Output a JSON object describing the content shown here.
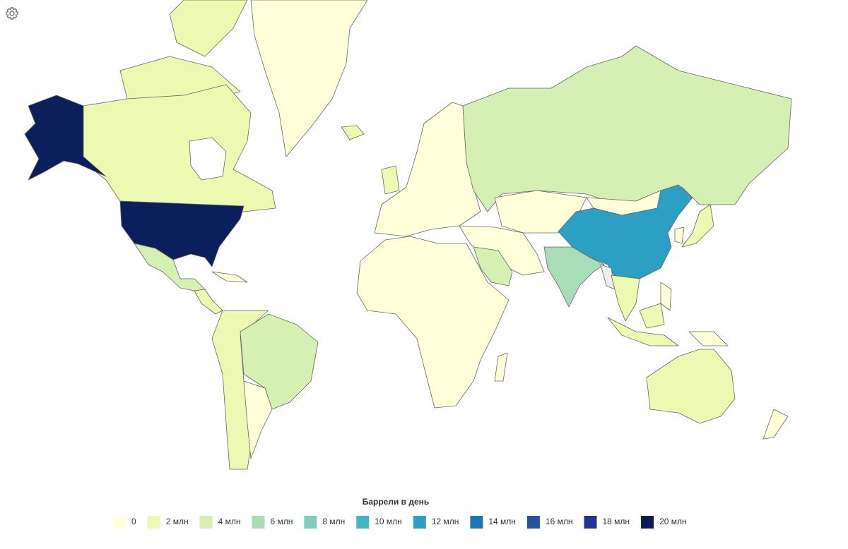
{
  "legend": {
    "title": "Баррели в день",
    "items": [
      {
        "label": "0",
        "color": "#ffffd9"
      },
      {
        "label": "2 млн",
        "color": "#edf8b1"
      },
      {
        "label": "4 млн",
        "color": "#d6efb3"
      },
      {
        "label": "6 млн",
        "color": "#a9ddb7"
      },
      {
        "label": "8 млн",
        "color": "#7fcdbb"
      },
      {
        "label": "10 млн",
        "color": "#41b6c4"
      },
      {
        "label": "12 млн",
        "color": "#2c9fc5"
      },
      {
        "label": "14 млн",
        "color": "#1d76b4"
      },
      {
        "label": "16 млн",
        "color": "#2353a0"
      },
      {
        "label": "18 млн",
        "color": "#253494"
      },
      {
        "label": "20 млн",
        "color": "#081d58"
      }
    ]
  }
}
